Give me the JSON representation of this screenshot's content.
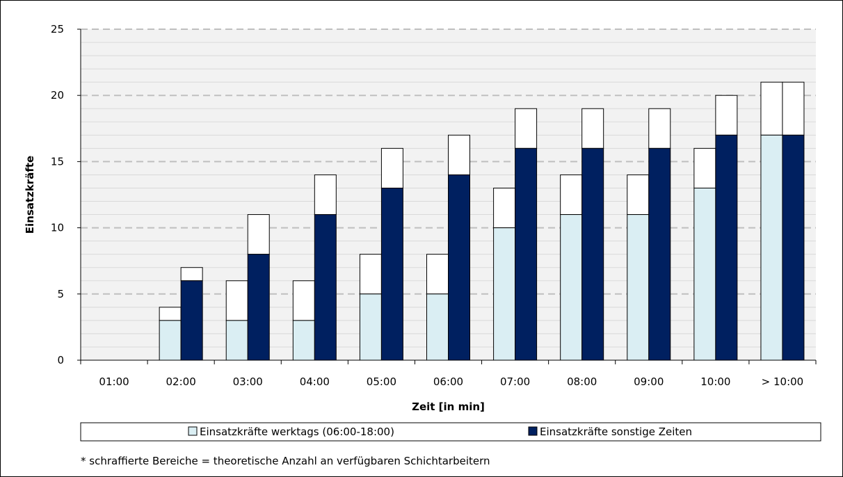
{
  "chart_data": {
    "type": "bar",
    "subtype": "grouped-stacked",
    "title": "",
    "xlabel": "Zeit [in min]",
    "ylabel": "Einsatzkräfte",
    "ylim": [
      0,
      25
    ],
    "yticks": [
      0,
      5,
      10,
      15,
      20,
      25
    ],
    "grid": true,
    "legend_position": "bottom",
    "categories": [
      "01:00",
      "02:00",
      "03:00",
      "04:00",
      "05:00",
      "06:00",
      "07:00",
      "08:00",
      "09:00",
      "10:00",
      "> 10:00"
    ],
    "series": [
      {
        "name": "Einsatzkräfte werktags (06:00-18:00)",
        "color": "#daeef3",
        "values": [
          0,
          3,
          3,
          3,
          5,
          5,
          10,
          11,
          11,
          13,
          17
        ],
        "totals": [
          0,
          4,
          6,
          6,
          8,
          8,
          13,
          14,
          14,
          16,
          21
        ]
      },
      {
        "name": "Einsatzkräfte sonstige Zeiten",
        "color": "#002060",
        "values": [
          0,
          6,
          8,
          11,
          13,
          14,
          16,
          16,
          16,
          17,
          17
        ],
        "totals": [
          0,
          7,
          11,
          14,
          16,
          17,
          19,
          19,
          19,
          20,
          21
        ]
      }
    ],
    "hatched_fill_color": "#ffffff",
    "footnote": "* schraffierte Bereiche = theoretische Anzahl an verfügbaren Schichtarbeitern"
  }
}
